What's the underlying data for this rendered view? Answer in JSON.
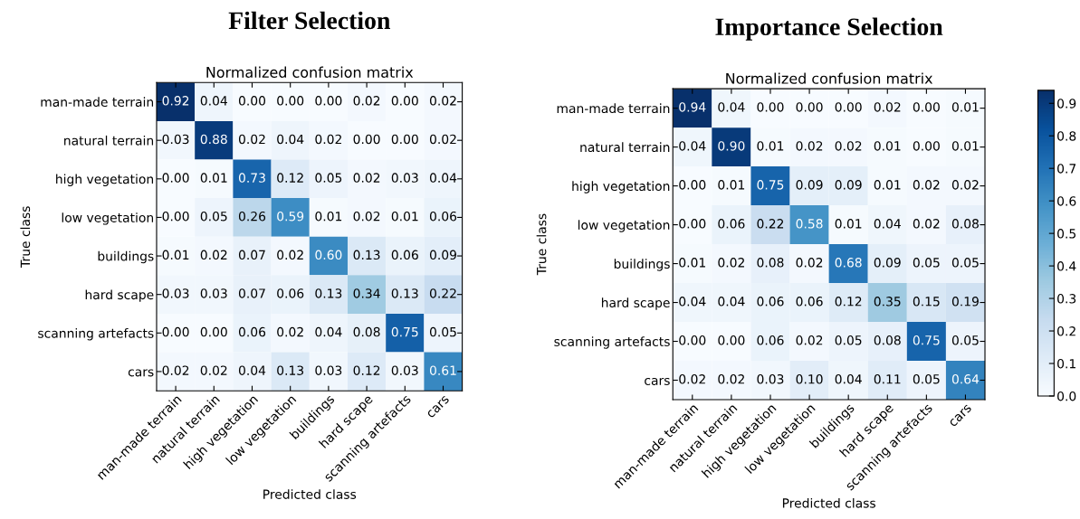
{
  "chart_data": [
    {
      "type": "heatmap",
      "title": "Filter Selection",
      "subtitle": "Normalized confusion matrix",
      "xlabel": "Predicted class",
      "ylabel": "True class",
      "categories": [
        "man-made terrain",
        "natural terrain",
        "high vegetation",
        "low vegetation",
        "buildings",
        "hard scape",
        "scanning artefacts",
        "cars"
      ],
      "y_categories": [
        "man-made terrain",
        "natural terrain",
        "high vegetation",
        "low vegetation",
        "buildings",
        "hard scape",
        "scanning artefacts",
        "cars"
      ],
      "cells": [
        [
          0.92,
          0.04,
          0.0,
          0.0,
          0.0,
          0.02,
          0.0,
          0.02
        ],
        [
          0.03,
          0.88,
          0.02,
          0.04,
          0.02,
          0.0,
          0.0,
          0.02
        ],
        [
          0.0,
          0.01,
          0.73,
          0.12,
          0.05,
          0.02,
          0.03,
          0.04
        ],
        [
          0.0,
          0.05,
          0.26,
          0.59,
          0.01,
          0.02,
          0.01,
          0.06
        ],
        [
          0.01,
          0.02,
          0.07,
          0.02,
          0.6,
          0.13,
          0.06,
          0.09
        ],
        [
          0.03,
          0.03,
          0.07,
          0.06,
          0.13,
          0.34,
          0.13,
          0.22
        ],
        [
          0.0,
          0.0,
          0.06,
          0.02,
          0.04,
          0.08,
          0.75,
          0.05
        ],
        [
          0.02,
          0.02,
          0.04,
          0.13,
          0.03,
          0.12,
          0.03,
          0.61
        ]
      ],
      "cell_labels": [
        [
          "0.92",
          "0.04",
          "0.00",
          "0.00",
          "0.00",
          "0.02",
          "0.00",
          "0.02"
        ],
        [
          "0.03",
          "0.88",
          "0.02",
          "0.04",
          "0.02",
          "0.00",
          "0.00",
          "0.02"
        ],
        [
          "0.00",
          "0.01",
          "0.73",
          "0.12",
          "0.05",
          "0.02",
          "0.03",
          "0.04"
        ],
        [
          "0.00",
          "0.05",
          "0.26",
          "0.59",
          "0.01",
          "0.02",
          "0.01",
          "0.06"
        ],
        [
          "0.01",
          "0.02",
          "0.07",
          "0.02",
          "0.60",
          "0.13",
          "0.06",
          "0.09"
        ],
        [
          "0.03",
          "0.03",
          "0.07",
          "0.06",
          "0.13",
          "0.34",
          "0.13",
          "0.22"
        ],
        [
          "0.00",
          "0.00",
          "0.06",
          "0.02",
          "0.04",
          "0.08",
          "0.75",
          "0.05"
        ],
        [
          "0.02",
          "0.02",
          "0.04",
          "0.13",
          "0.03",
          "0.12",
          "0.03",
          "0.61"
        ]
      ]
    },
    {
      "type": "heatmap",
      "title": "Importance Selection",
      "subtitle": "Normalized confusion matrix",
      "xlabel": "Predicted class",
      "ylabel": "True class",
      "categories": [
        "man-made terrain",
        "natural terrain",
        "high vegetation",
        "low vegetation",
        "buildings",
        "hard scape",
        "scanning artefacts",
        "cars"
      ],
      "y_categories": [
        "man-made terrain",
        "natural terrain",
        "high vegetation",
        "low vegetation",
        "buildings",
        "hard scape",
        "scanning artefacts",
        "cars"
      ],
      "cells": [
        [
          0.94,
          0.04,
          0.0,
          0.0,
          0.0,
          0.02,
          0.0,
          0.01
        ],
        [
          0.04,
          0.9,
          0.01,
          0.02,
          0.02,
          0.01,
          0.0,
          0.01
        ],
        [
          0.0,
          0.01,
          0.75,
          0.09,
          0.09,
          0.01,
          0.02,
          0.02
        ],
        [
          0.0,
          0.06,
          0.22,
          0.58,
          0.01,
          0.04,
          0.02,
          0.08
        ],
        [
          0.01,
          0.02,
          0.08,
          0.02,
          0.68,
          0.09,
          0.05,
          0.05
        ],
        [
          0.04,
          0.04,
          0.06,
          0.06,
          0.12,
          0.35,
          0.15,
          0.19
        ],
        [
          0.0,
          0.0,
          0.06,
          0.02,
          0.05,
          0.08,
          0.75,
          0.05
        ],
        [
          0.02,
          0.02,
          0.03,
          0.1,
          0.04,
          0.11,
          0.05,
          0.64
        ]
      ],
      "cell_labels": [
        [
          "0.94",
          "0.04",
          "0.00",
          "0.00",
          "0.00",
          "0.02",
          "0.00",
          "0.01"
        ],
        [
          "0.04",
          "0.90",
          "0.01",
          "0.02",
          "0.02",
          "0.01",
          "0.00",
          "0.01"
        ],
        [
          "0.00",
          "0.01",
          "0.75",
          "0.09",
          "0.09",
          "0.01",
          "0.02",
          "0.02"
        ],
        [
          "0.00",
          "0.06",
          "0.22",
          "0.58",
          "0.01",
          "0.04",
          "0.02",
          "0.08"
        ],
        [
          "0.01",
          "0.02",
          "0.08",
          "0.02",
          "0.68",
          "0.09",
          "0.05",
          "0.05"
        ],
        [
          "0.04",
          "0.04",
          "0.06",
          "0.06",
          "0.12",
          "0.35",
          "0.15",
          "0.19"
        ],
        [
          "0.00",
          "0.00",
          "0.06",
          "0.02",
          "0.05",
          "0.08",
          "0.75",
          "0.05"
        ],
        [
          "0.02",
          "0.02",
          "0.03",
          "0.10",
          "0.04",
          "0.11",
          "0.05",
          "0.64"
        ]
      ],
      "clim": [
        0,
        0.94
      ],
      "cticks": [
        {
          "value": 0,
          "label": "0.0"
        },
        0.1,
        0.2,
        0.3,
        0.4,
        0.5,
        0.6,
        0.7,
        0.8,
        0.9
      ]
    }
  ]
}
